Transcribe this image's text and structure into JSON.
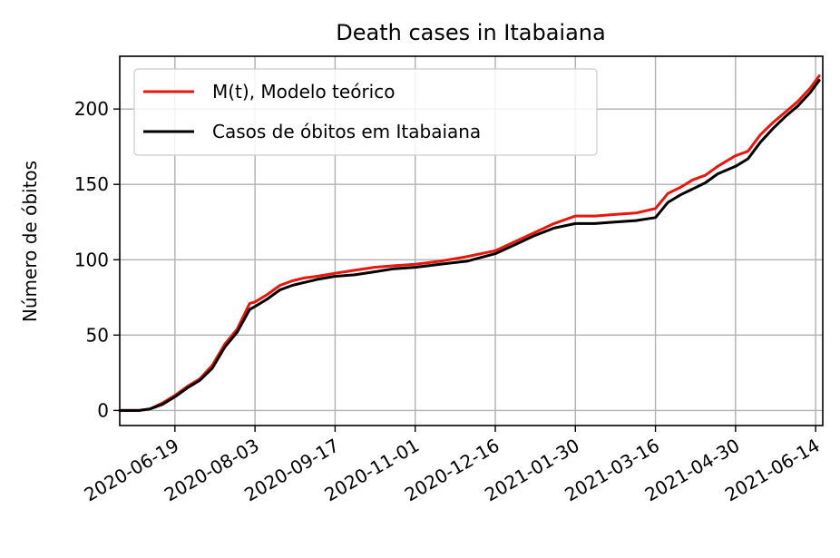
{
  "chart_data": {
    "type": "line",
    "title": "Death cases in Itabaiana",
    "xlabel": "",
    "ylabel": "Número de óbitos",
    "x_ticks": [
      "2020-06-19",
      "2020-08-03",
      "2020-09-17",
      "2020-11-01",
      "2020-12-16",
      "2021-01-30",
      "2021-03-16",
      "2021-04-30",
      "2021-06-14"
    ],
    "y_ticks": [
      0,
      50,
      100,
      150,
      200
    ],
    "xlim": [
      "2020-05-19",
      "2021-06-18"
    ],
    "ylim": [
      -10,
      235
    ],
    "grid": true,
    "legend_position": "upper-left",
    "series": [
      {
        "name": "M(t), Modelo teórico",
        "color": "#e8160c",
        "x": [
          "2020-05-19",
          "2020-05-30",
          "2020-06-05",
          "2020-06-12",
          "2020-06-19",
          "2020-06-26",
          "2020-07-03",
          "2020-07-10",
          "2020-07-17",
          "2020-07-24",
          "2020-07-31",
          "2020-08-03",
          "2020-08-10",
          "2020-08-17",
          "2020-08-24",
          "2020-08-31",
          "2020-09-07",
          "2020-09-17",
          "2020-09-28",
          "2020-10-09",
          "2020-10-20",
          "2020-11-01",
          "2020-11-15",
          "2020-11-30",
          "2020-12-16",
          "2020-12-27",
          "2021-01-07",
          "2021-01-18",
          "2021-01-30",
          "2021-02-10",
          "2021-02-21",
          "2021-03-05",
          "2021-03-16",
          "2021-03-23",
          "2021-03-30",
          "2021-04-06",
          "2021-04-13",
          "2021-04-20",
          "2021-04-30",
          "2021-05-07",
          "2021-05-14",
          "2021-05-21",
          "2021-05-28",
          "2021-06-04",
          "2021-06-11",
          "2021-06-16"
        ],
        "y": [
          0,
          0,
          1,
          5,
          10,
          16,
          21,
          30,
          44,
          54,
          71,
          72,
          77,
          83,
          86,
          88,
          89,
          91,
          93,
          95,
          96,
          97,
          99,
          102,
          106,
          112,
          118,
          124,
          129,
          129,
          130,
          131,
          134,
          144,
          148,
          153,
          156,
          162,
          169,
          172,
          183,
          191,
          198,
          205,
          214,
          222
        ]
      },
      {
        "name": "Casos de óbitos em Itabaiana",
        "color": "#000000",
        "x": [
          "2020-05-19",
          "2020-05-30",
          "2020-06-05",
          "2020-06-12",
          "2020-06-19",
          "2020-06-26",
          "2020-07-03",
          "2020-07-10",
          "2020-07-17",
          "2020-07-24",
          "2020-07-31",
          "2020-08-03",
          "2020-08-10",
          "2020-08-17",
          "2020-08-24",
          "2020-08-31",
          "2020-09-07",
          "2020-09-17",
          "2020-09-28",
          "2020-10-09",
          "2020-10-20",
          "2020-11-01",
          "2020-11-15",
          "2020-11-30",
          "2020-12-16",
          "2020-12-27",
          "2021-01-07",
          "2021-01-18",
          "2021-01-30",
          "2021-02-10",
          "2021-02-21",
          "2021-03-05",
          "2021-03-16",
          "2021-03-23",
          "2021-03-30",
          "2021-04-06",
          "2021-04-13",
          "2021-04-20",
          "2021-04-30",
          "2021-05-07",
          "2021-05-14",
          "2021-05-21",
          "2021-05-28",
          "2021-06-04",
          "2021-06-11",
          "2021-06-16"
        ],
        "y": [
          0,
          0,
          1,
          4,
          9,
          15,
          20,
          28,
          42,
          52,
          67,
          69,
          74,
          80,
          83,
          85,
          87,
          89,
          90,
          92,
          94,
          95,
          97,
          99,
          104,
          110,
          116,
          121,
          124,
          124,
          125,
          126,
          128,
          138,
          143,
          147,
          151,
          157,
          162,
          167,
          178,
          187,
          195,
          202,
          211,
          219
        ]
      }
    ]
  }
}
